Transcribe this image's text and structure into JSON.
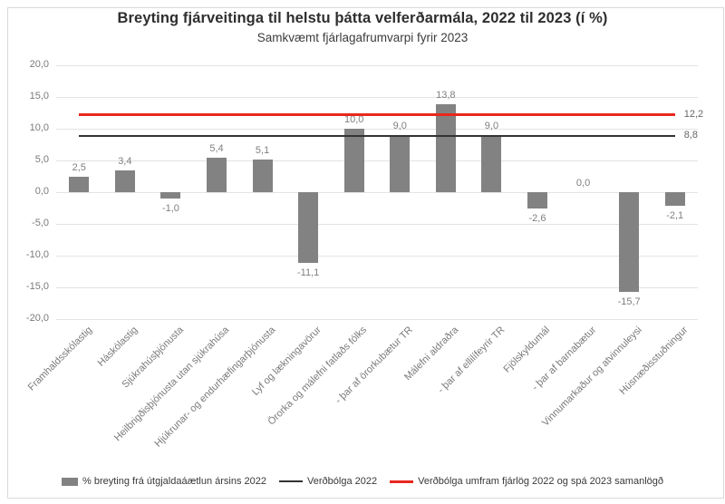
{
  "title": "Breyting fjárveitinga til helstu þátta velferðarmála, 2022 til 2023 (í %)",
  "subtitle": "Samkvæmt fjárlagafrumvarpi fyrir 2023",
  "colors": {
    "bar": "#828282",
    "grid": "#e3e3e3",
    "inflation_line": "#333333",
    "excess_line": "#e8281e",
    "axis_text": "#7a7a7a",
    "value_label_text": "#7f7f7f"
  },
  "chart_data": {
    "type": "bar",
    "title": "Breyting fjárveitinga til helstu þátta velferðarmála, 2022 til 2023 (í %)",
    "subtitle": "Samkvæmt fjárlagafrumvarpi fyrir 2023",
    "categories": [
      "Framhaldsskólastig",
      "Háskólastig",
      "Sjúkrahúsþjónusta",
      "Heilbrigðisþjónusta utan sjúkrahúsa",
      "Hjúkrunar- og endurhæfingarþjónusta",
      "Lyf og lækningavörur",
      "Örorka og málefni fatlaðs fólks",
      "- þar af örorkubætur TR",
      "Málefni aldraðra",
      "- þar af ellilífeyrir TR",
      "Fjölskyldumál",
      "- þar af barnabætur",
      "Vinnumarkaður og atvinnuleysi",
      "Húsnæðisstuðningur"
    ],
    "values": [
      2.5,
      3.4,
      -1.0,
      5.4,
      5.1,
      -11.1,
      10.0,
      9.0,
      13.8,
      9.0,
      -2.6,
      0.0,
      -15.7,
      -2.1
    ],
    "value_labels": [
      "2,5",
      "3,4",
      "-1,0",
      "5,4",
      "5,1",
      "-11,1",
      "10,0",
      "9,0",
      "13,8",
      "9,0",
      "-2,6",
      "0,0",
      "-15,7",
      "-2,1"
    ],
    "ylim": [
      -20,
      20
    ],
    "ytick_step": 5,
    "ytick_labels": [
      "20,0",
      "15,0",
      "10,0",
      "5,0",
      "0,0",
      "-5,0",
      "-10,0",
      "-15,0",
      "-20,0"
    ],
    "grid": true,
    "xlabel": "",
    "ylabel": "",
    "legend_position": "bottom",
    "reference_lines": [
      {
        "name": "Verðbólga 2022",
        "value": 8.8,
        "label": "8,8",
        "color": "#333333"
      },
      {
        "name": "Verðbólga umfram fjárlög 2022 og spá 2023 samanlögð",
        "value": 12.2,
        "label": "12,2",
        "color": "#e8281e"
      }
    ],
    "legend": [
      "% breyting frá útgjaldaáætlun ársins 2022",
      "Verðbólga 2022",
      "Verðbólga umfram fjárlög 2022 og spá 2023 samanlögð"
    ]
  }
}
